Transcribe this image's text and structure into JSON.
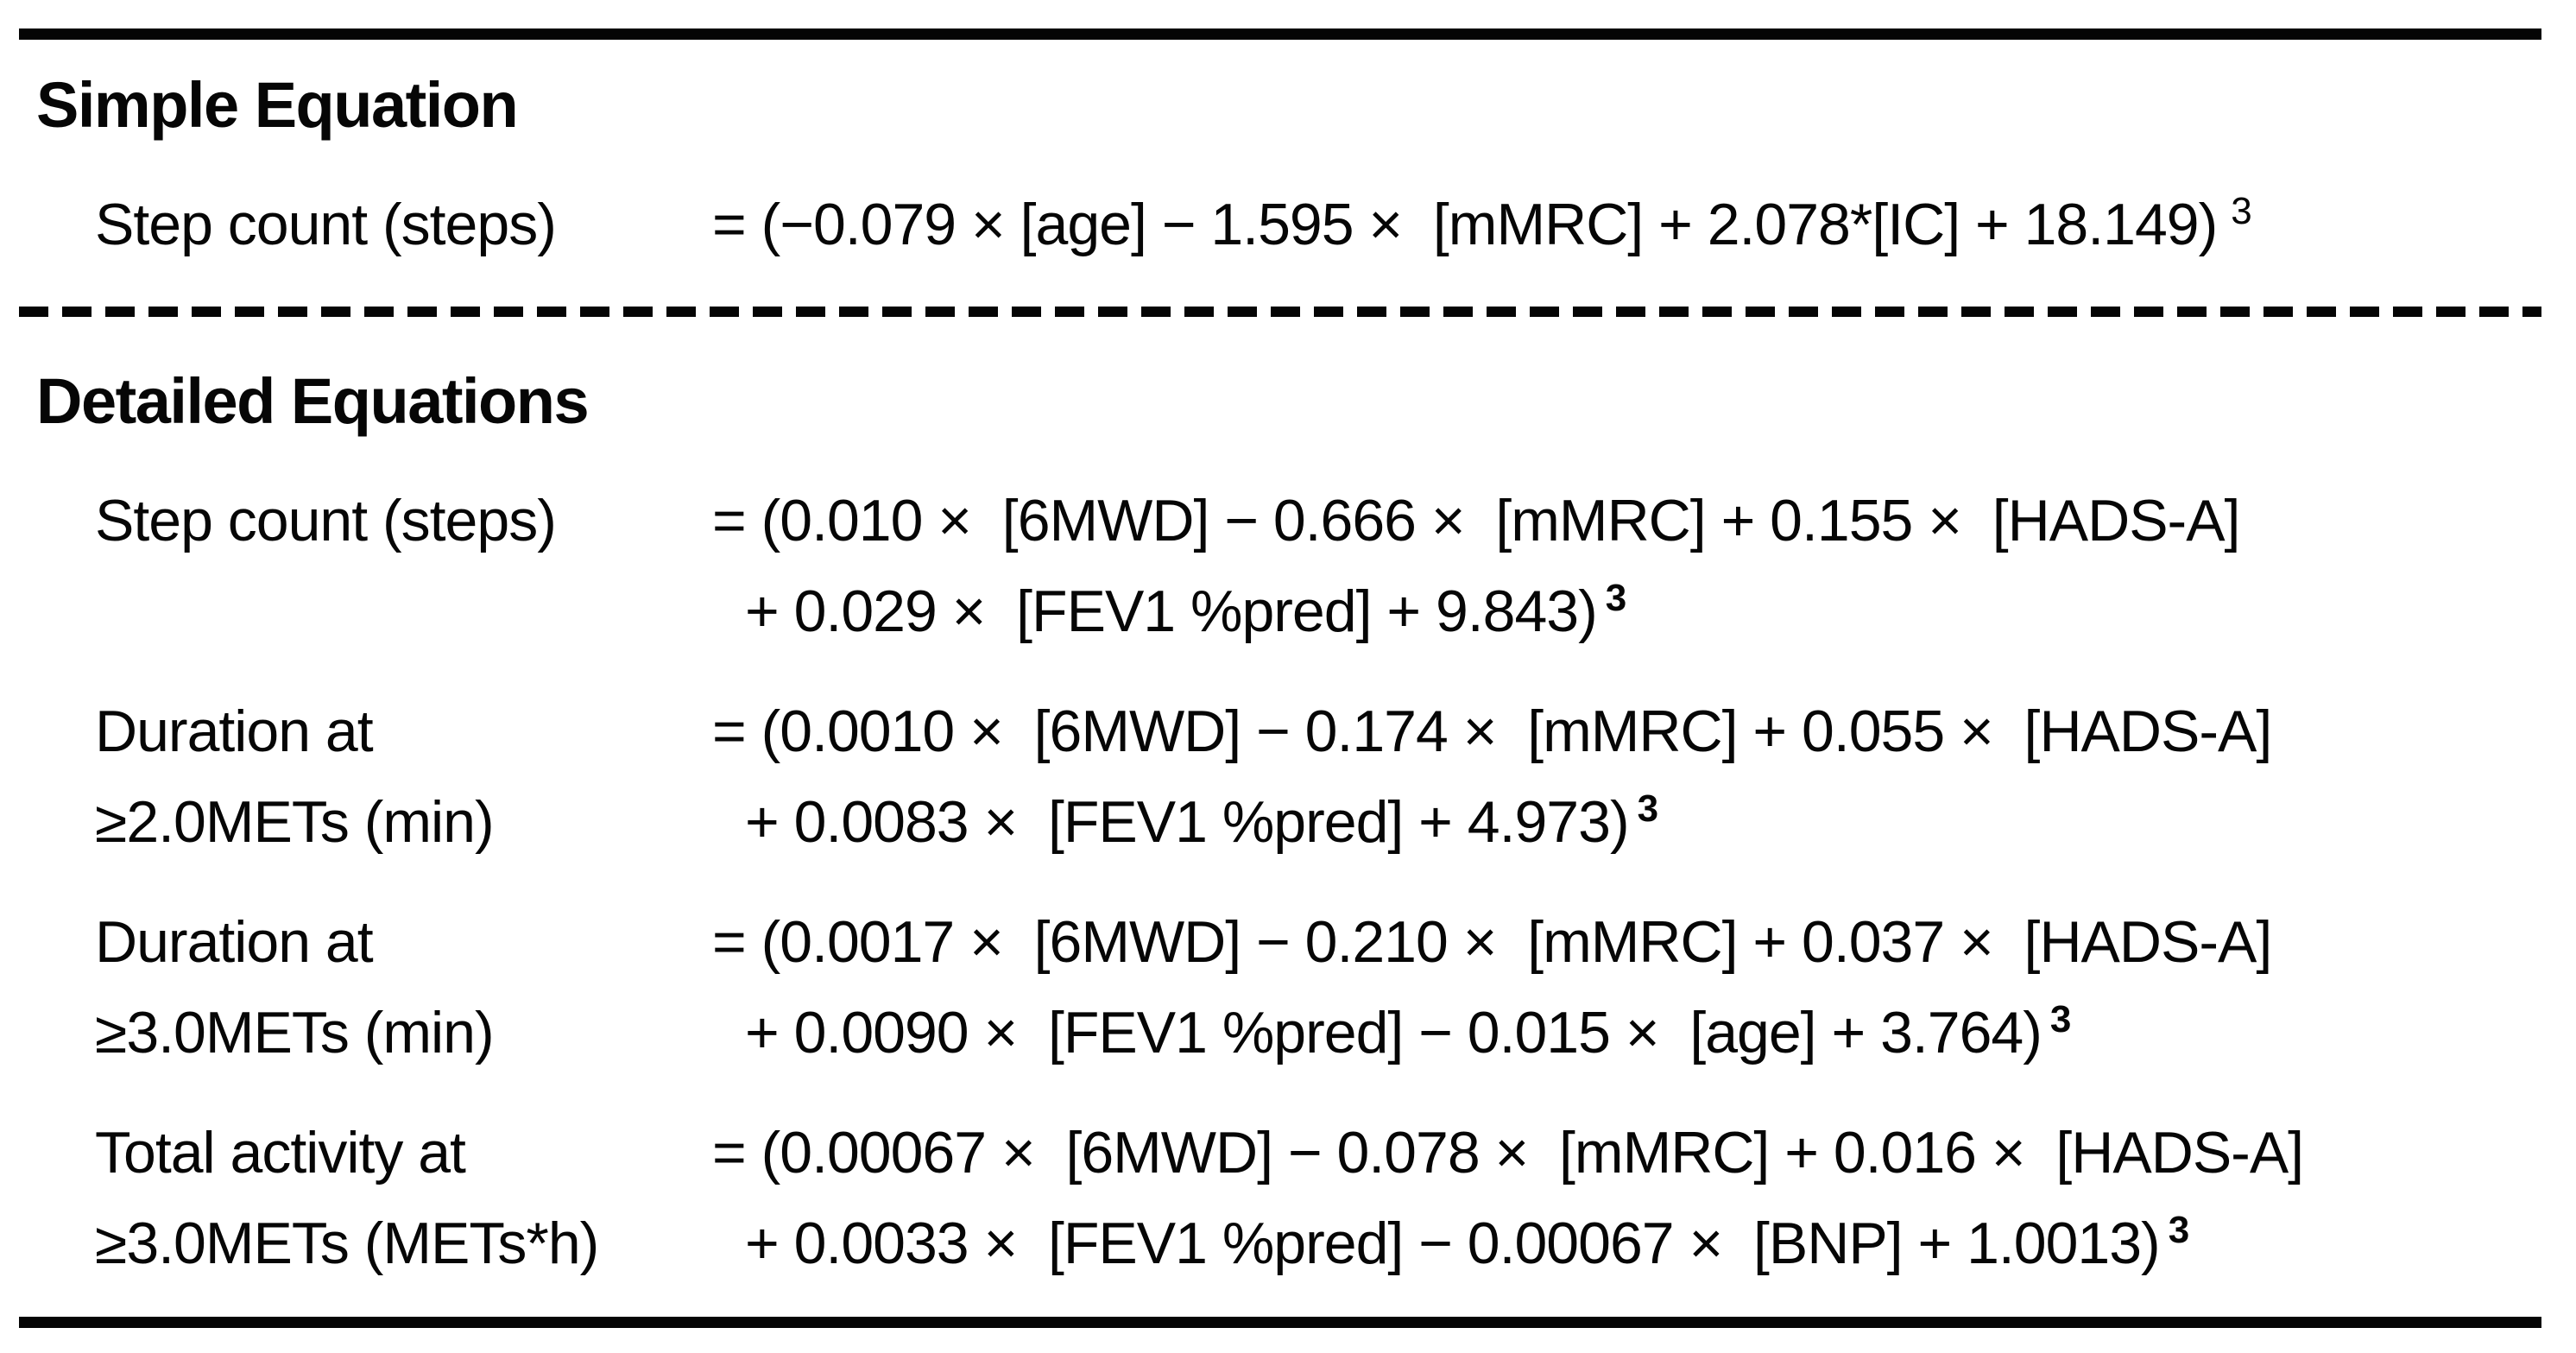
{
  "table": {
    "sections": [
      {
        "heading": "Simple Equation",
        "rows": [
          {
            "label_lines": [
              "Step count (steps)"
            ],
            "eq_lines": [
              "= (−0.079 × [age] − 1.595 ×  [mMRC] + 2.078*[IC] + 18.149)"
            ],
            "exponent": "3",
            "exponent_bold": false
          }
        ]
      },
      {
        "heading": "Detailed Equations",
        "rows": [
          {
            "label_lines": [
              "Step count (steps)"
            ],
            "eq_lines": [
              "= (0.010 ×  [6MWD] − 0.666 ×  [mMRC] + 0.155 ×  [HADS-A]",
              "+ 0.029 ×  [FEV1 %pred] + 9.843)"
            ],
            "exponent": "3",
            "exponent_bold": true
          },
          {
            "label_lines": [
              "Duration at",
              "≥2.0METs (min)"
            ],
            "eq_lines": [
              "= (0.0010 ×  [6MWD] − 0.174 ×  [mMRC] + 0.055 ×  [HADS-A]",
              "+ 0.0083 ×  [FEV1 %pred] + 4.973)"
            ],
            "exponent": "3",
            "exponent_bold": true
          },
          {
            "label_lines": [
              "Duration at",
              "≥3.0METs (min)"
            ],
            "eq_lines": [
              "= (0.0017 ×  [6MWD] − 0.210 ×  [mMRC] + 0.037 ×  [HADS-A]",
              "+ 0.0090 ×  [FEV1 %pred] − 0.015 ×  [age] + 3.764)"
            ],
            "exponent": "3",
            "exponent_bold": true
          },
          {
            "label_lines": [
              "Total activity at",
              "≥3.0METs (METs*h)"
            ],
            "eq_lines": [
              "= (0.00067 ×  [6MWD] − 0.078 ×  [mMRC] + 0.016 ×  [HADS-A]",
              "+ 0.0033 ×  [FEV1 %pred] − 0.00067 ×  [BNP] + 1.0013)"
            ],
            "exponent": "3",
            "exponent_bold": true
          }
        ]
      }
    ]
  },
  "colors": {
    "background": "#ffffff",
    "text": "#060606",
    "rule": "#050505"
  }
}
